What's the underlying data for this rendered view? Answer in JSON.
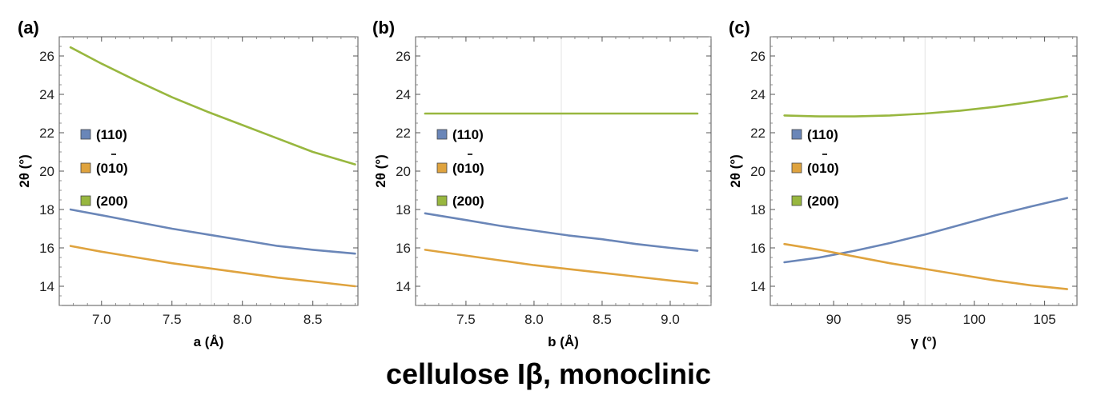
{
  "title": "cellulose Iβ, monoclinic",
  "colors": {
    "110": "#6a86b8",
    "0-10": "#dfa33e",
    "200": "#98b73f"
  },
  "chart_data": [
    {
      "type": "line",
      "panel": "(a)",
      "xlabel": "a (Å)",
      "ylabel": "2θ (°)",
      "xlim": [
        6.7,
        8.82
      ],
      "ylim": [
        13.0,
        27.0
      ],
      "xticks": [
        7.0,
        7.5,
        8.0,
        8.5
      ],
      "xtick_labels": [
        "7.0",
        "7.5",
        "8.0",
        "8.5"
      ],
      "yticks": [
        14,
        16,
        18,
        20,
        22,
        24,
        26
      ],
      "ytick_labels": [
        "14",
        "16",
        "18",
        "20",
        "22",
        "24",
        "26"
      ],
      "vline": 7.78,
      "legend": [
        "(110)",
        "(010)",
        "(200)"
      ],
      "series": [
        {
          "name": "(110)",
          "color": "#6a86b8",
          "x": [
            6.78,
            7.0,
            7.25,
            7.5,
            7.75,
            8.0,
            8.25,
            8.5,
            8.8
          ],
          "y": [
            18.0,
            17.7,
            17.35,
            17.0,
            16.7,
            16.4,
            16.1,
            15.9,
            15.7
          ]
        },
        {
          "name": "(010)",
          "color": "#dfa33e",
          "x": [
            6.78,
            7.0,
            7.25,
            7.5,
            7.75,
            8.0,
            8.25,
            8.5,
            8.8
          ],
          "y": [
            16.1,
            15.8,
            15.5,
            15.2,
            14.95,
            14.7,
            14.45,
            14.25,
            14.0
          ]
        },
        {
          "name": "(200)",
          "color": "#98b73f",
          "x": [
            6.78,
            7.0,
            7.25,
            7.5,
            7.75,
            8.0,
            8.25,
            8.5,
            8.8
          ],
          "y": [
            26.45,
            25.6,
            24.7,
            23.85,
            23.1,
            22.4,
            21.7,
            21.0,
            20.35
          ]
        }
      ]
    },
    {
      "type": "line",
      "panel": "(b)",
      "xlabel": "b (Å)",
      "ylabel": "2θ (°)",
      "xlim": [
        7.13,
        9.3
      ],
      "ylim": [
        13.0,
        27.0
      ],
      "xticks": [
        7.5,
        8.0,
        8.5,
        9.0
      ],
      "xtick_labels": [
        "7.5",
        "8.0",
        "8.5",
        "9.0"
      ],
      "yticks": [
        14,
        16,
        18,
        20,
        22,
        24,
        26
      ],
      "ytick_labels": [
        "14",
        "16",
        "18",
        "20",
        "22",
        "24",
        "26"
      ],
      "vline": 8.2,
      "legend": [
        "(110)",
        "(010)",
        "(200)"
      ],
      "series": [
        {
          "name": "(110)",
          "color": "#6a86b8",
          "x": [
            7.2,
            7.5,
            7.75,
            8.0,
            8.25,
            8.5,
            8.75,
            9.0,
            9.2
          ],
          "y": [
            17.8,
            17.45,
            17.15,
            16.9,
            16.65,
            16.45,
            16.2,
            16.0,
            15.85
          ]
        },
        {
          "name": "(010)",
          "color": "#dfa33e",
          "x": [
            7.2,
            7.5,
            7.75,
            8.0,
            8.25,
            8.5,
            8.75,
            9.0,
            9.2
          ],
          "y": [
            15.9,
            15.6,
            15.35,
            15.1,
            14.9,
            14.7,
            14.5,
            14.3,
            14.15
          ]
        },
        {
          "name": "(200)",
          "color": "#98b73f",
          "x": [
            7.2,
            9.2
          ],
          "y": [
            23.0,
            23.0
          ]
        }
      ]
    },
    {
      "type": "line",
      "panel": "(c)",
      "xlabel": "γ (°)",
      "ylabel": "2θ (°)",
      "xlim": [
        85.5,
        107.3
      ],
      "ylim": [
        13.0,
        27.0
      ],
      "xticks": [
        90,
        95,
        100,
        105
      ],
      "xtick_labels": [
        "90",
        "95",
        "100",
        "105"
      ],
      "yticks": [
        14,
        16,
        18,
        20,
        22,
        24,
        26
      ],
      "ytick_labels": [
        "14",
        "16",
        "18",
        "20",
        "22",
        "24",
        "26"
      ],
      "vline": 96.5,
      "legend": [
        "(110)",
        "(010)",
        "(200)"
      ],
      "series": [
        {
          "name": "(110)",
          "color": "#6a86b8",
          "x": [
            86.5,
            89,
            91.5,
            94,
            96.5,
            99,
            101.5,
            104,
            106.6
          ],
          "y": [
            15.25,
            15.5,
            15.85,
            16.25,
            16.7,
            17.2,
            17.7,
            18.15,
            18.6
          ]
        },
        {
          "name": "(010)",
          "color": "#dfa33e",
          "x": [
            86.5,
            89,
            91.5,
            94,
            96.5,
            99,
            101.5,
            104,
            106.6
          ],
          "y": [
            16.2,
            15.9,
            15.55,
            15.2,
            14.9,
            14.6,
            14.3,
            14.05,
            13.85
          ]
        },
        {
          "name": "(200)",
          "color": "#98b73f",
          "x": [
            86.5,
            89,
            91.5,
            94,
            96.5,
            99,
            101.5,
            104,
            106.6
          ],
          "y": [
            22.9,
            22.85,
            22.85,
            22.9,
            23.0,
            23.15,
            23.35,
            23.6,
            23.9
          ]
        }
      ]
    }
  ]
}
